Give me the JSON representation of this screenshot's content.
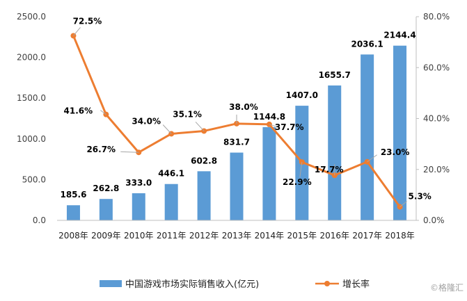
{
  "chart_data": {
    "type": "bar+line",
    "categories": [
      "2008年",
      "2009年",
      "2010年",
      "2011年",
      "2012年",
      "2013年",
      "2014年",
      "2015年",
      "2016年",
      "2017年",
      "2018年"
    ],
    "series": [
      {
        "name": "中国游戏市场实际销售收入(亿元)",
        "type": "bar",
        "axis": "left",
        "values": [
          185.6,
          262.8,
          333.0,
          446.1,
          602.8,
          831.7,
          1144.8,
          1407.0,
          1655.7,
          2036.1,
          2144.4
        ],
        "labels": [
          "185.6",
          "262.8",
          "333.0",
          "446.1",
          "602.8",
          "831.7",
          "1144.8",
          "1407.0",
          "1655.7",
          "2036.1",
          "2144.4"
        ],
        "color": "#5B9BD5"
      },
      {
        "name": "增长率",
        "type": "line",
        "axis": "right",
        "values": [
          72.5,
          41.6,
          26.7,
          34.0,
          35.1,
          38.0,
          37.7,
          22.9,
          17.7,
          23.0,
          5.3
        ],
        "labels": [
          "72.5%",
          "41.6%",
          "26.7%",
          "34.0%",
          "35.1%",
          "38.0%",
          "37.7%",
          "22.9%",
          "17.7%",
          "23.0%",
          "5.3%"
        ],
        "color": "#ED7D31"
      }
    ],
    "y_left": {
      "range": [
        0,
        2500
      ],
      "ticks": [
        "0.0",
        "500.0",
        "1000.0",
        "1500.0",
        "2000.0",
        "2500.0"
      ]
    },
    "y_right": {
      "range": [
        0,
        80
      ],
      "ticks": [
        "0.0%",
        "20.0%",
        "40.0%",
        "60.0%",
        "80.0%"
      ]
    },
    "legend": "bottom",
    "grid": false
  },
  "watermark": "©格隆汇"
}
